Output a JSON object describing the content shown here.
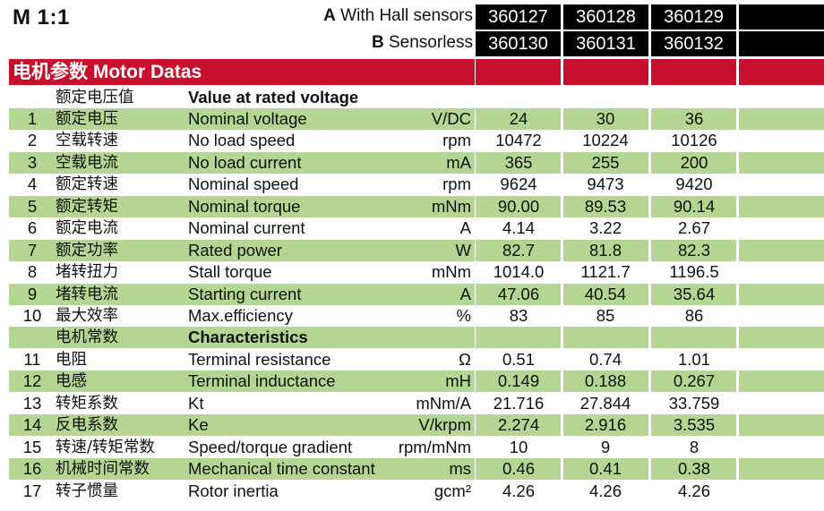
{
  "scale_label": "M 1:1",
  "variants": [
    {
      "letter": "A",
      "label": "With Hall sensors",
      "codes": [
        "360127",
        "360128",
        "360129"
      ]
    },
    {
      "letter": "B",
      "label": "Sensorless",
      "codes": [
        "360130",
        "360131",
        "360132"
      ]
    }
  ],
  "banner_title": "电机参数 Motor Datas",
  "rows": [
    {
      "num": "",
      "cn": "额定电压值",
      "en": "Value at rated voltage",
      "unit": "",
      "values": [
        "",
        "",
        ""
      ],
      "section": true
    },
    {
      "num": "1",
      "cn": "额定电压",
      "en": "Nominal voltage",
      "unit": "V/DC",
      "values": [
        "24",
        "30",
        "36"
      ]
    },
    {
      "num": "2",
      "cn": "空载转速",
      "en": "No load speed",
      "unit": "rpm",
      "values": [
        "10472",
        "10224",
        "10126"
      ]
    },
    {
      "num": "3",
      "cn": "空载电流",
      "en": "No load current",
      "unit": "mA",
      "values": [
        "365",
        "255",
        "200"
      ]
    },
    {
      "num": "4",
      "cn": "额定转速",
      "en": "Nominal speed",
      "unit": "rpm",
      "values": [
        "9624",
        "9473",
        "9420"
      ]
    },
    {
      "num": "5",
      "cn": "额定转矩",
      "en": "Nominal torque",
      "unit": "mNm",
      "values": [
        "90.00",
        "89.53",
        "90.14"
      ]
    },
    {
      "num": "6",
      "cn": "额定电流",
      "en": "Nominal current",
      "unit": "A",
      "values": [
        "4.14",
        "3.22",
        "2.67"
      ]
    },
    {
      "num": "7",
      "cn": "额定功率",
      "en": "Rated power",
      "unit": "W",
      "values": [
        "82.7",
        "81.8",
        "82.3"
      ]
    },
    {
      "num": "8",
      "cn": "堵转扭力",
      "en": "Stall torque",
      "unit": "mNm",
      "values": [
        "1014.0",
        "1121.7",
        "1196.5"
      ]
    },
    {
      "num": "9",
      "cn": "堵转电流",
      "en": "Starting current",
      "unit": "A",
      "values": [
        "47.06",
        "40.54",
        "35.64"
      ]
    },
    {
      "num": "10",
      "cn": "最大效率",
      "en": "Max.efficiency",
      "unit": "%",
      "values": [
        "83",
        "85",
        "86"
      ]
    },
    {
      "num": "",
      "cn": "电机常数",
      "en": "Characteristics",
      "unit": "",
      "values": [
        "",
        "",
        ""
      ],
      "section": true
    },
    {
      "num": "11",
      "cn": "电阻",
      "en": "Terminal resistance",
      "unit": "Ω",
      "values": [
        "0.51",
        "0.74",
        "1.01"
      ]
    },
    {
      "num": "12",
      "cn": "电感",
      "en": "Terminal inductance",
      "unit": "mH",
      "values": [
        "0.149",
        "0.188",
        "0.267"
      ]
    },
    {
      "num": "13",
      "cn": "转矩系数",
      "en": "Kt",
      "unit": "mNm/A",
      "values": [
        "21.716",
        "27.844",
        "33.759"
      ]
    },
    {
      "num": "14",
      "cn": "反电系数",
      "en": "Ke",
      "unit": "V/krpm",
      "values": [
        "2.274",
        "2.916",
        "3.535"
      ]
    },
    {
      "num": "15",
      "cn": "转速/转矩常数",
      "en": "Speed/torque gradient",
      "unit": "rpm/mNm",
      "values": [
        "10",
        "9",
        "8"
      ]
    },
    {
      "num": "16",
      "cn": "机械时间常数",
      "en": "Mechanical time constant",
      "unit": "ms",
      "values": [
        "0.46",
        "0.41",
        "0.38"
      ]
    },
    {
      "num": "17",
      "cn": "转子惯量",
      "en": "Rotor inertia",
      "unit": "gcm²",
      "values": [
        "4.26",
        "4.26",
        "4.26"
      ]
    }
  ]
}
